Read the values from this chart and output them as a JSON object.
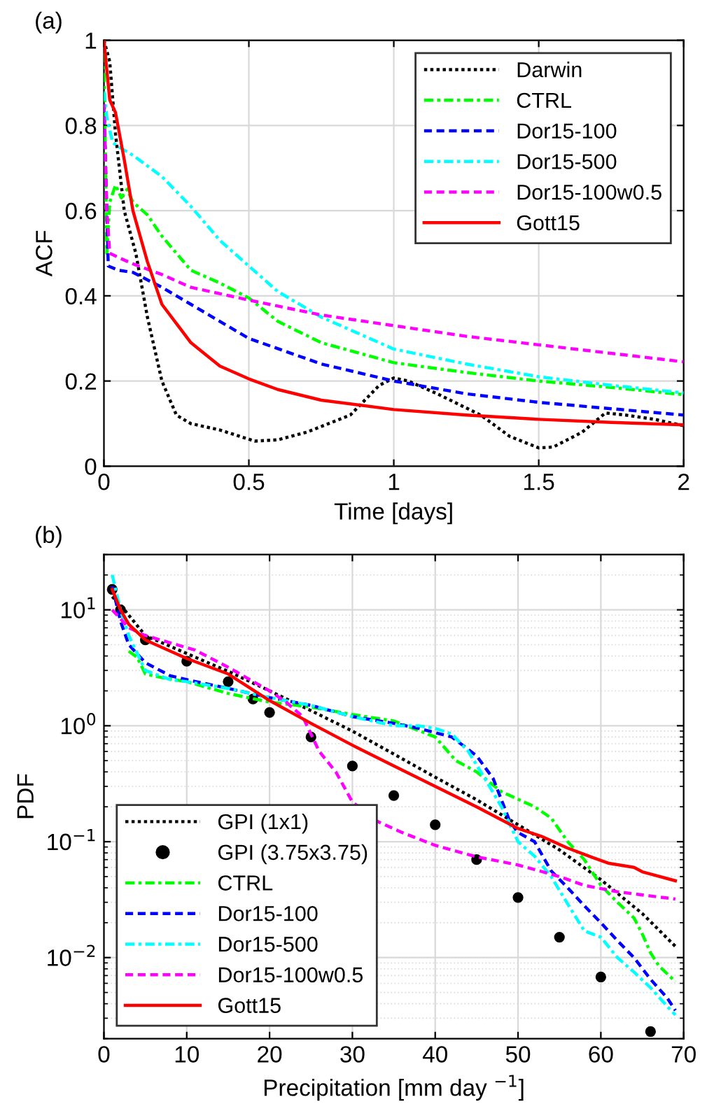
{
  "chart_data": [
    {
      "type": "line",
      "title": "(a)",
      "xlabel": "Time [days]",
      "ylabel": "ACF",
      "xlim": [
        0,
        2
      ],
      "ylim": [
        0,
        1
      ],
      "xticks": [
        0,
        0.5,
        1,
        1.5,
        2
      ],
      "yticks": [
        0,
        0.2,
        0.4,
        0.6,
        0.8,
        1
      ],
      "grid": true,
      "legend": "top right",
      "series": [
        {
          "name": "Darwin",
          "color": "#000000",
          "line_style": "dotted",
          "x": [
            0,
            0.02,
            0.04,
            0.07,
            0.11,
            0.15,
            0.2,
            0.25,
            0.3,
            0.4,
            0.52,
            0.6,
            0.7,
            0.85,
            0.95,
            1.0,
            1.05,
            1.15,
            1.3,
            1.4,
            1.5,
            1.55,
            1.65,
            1.73,
            1.8,
            1.9,
            2.0
          ],
          "values": [
            1,
            0.95,
            0.78,
            0.6,
            0.5,
            0.35,
            0.2,
            0.12,
            0.1,
            0.085,
            0.059,
            0.062,
            0.08,
            0.12,
            0.19,
            0.207,
            0.2,
            0.17,
            0.12,
            0.07,
            0.043,
            0.045,
            0.08,
            0.125,
            0.12,
            0.11,
            0.095
          ]
        },
        {
          "name": "CTRL",
          "color": "#00ff00",
          "line_style": "dashdot",
          "x": [
            0,
            0.01,
            0.02,
            0.04,
            0.06,
            0.08,
            0.1,
            0.15,
            0.2,
            0.3,
            0.4,
            0.5,
            0.6,
            0.75,
            1.0,
            1.25,
            1.5,
            1.75,
            2.0
          ],
          "values": [
            0.97,
            0.5,
            0.62,
            0.66,
            0.63,
            0.65,
            0.62,
            0.59,
            0.54,
            0.46,
            0.43,
            0.395,
            0.34,
            0.29,
            0.243,
            0.22,
            0.2,
            0.185,
            0.168
          ]
        },
        {
          "name": "Dor15-100",
          "color": "#0000ff",
          "line_style": "dashed",
          "x": [
            0,
            0.01,
            0.015,
            0.05,
            0.1,
            0.2,
            0.3,
            0.4,
            0.5,
            0.75,
            1.0,
            1.25,
            1.5,
            1.75,
            2.0
          ],
          "values": [
            0.85,
            0.6,
            0.47,
            0.46,
            0.455,
            0.42,
            0.38,
            0.34,
            0.3,
            0.24,
            0.2,
            0.17,
            0.15,
            0.135,
            0.12
          ]
        },
        {
          "name": "Dor15-500",
          "color": "#00ffff",
          "line_style": "dashdot",
          "x": [
            0,
            0.01,
            0.03,
            0.05,
            0.1,
            0.2,
            0.3,
            0.4,
            0.5,
            0.6,
            0.75,
            1.0,
            1.25,
            1.5,
            1.75,
            2.0
          ],
          "values": [
            0.88,
            0.82,
            0.76,
            0.75,
            0.73,
            0.68,
            0.61,
            0.53,
            0.47,
            0.41,
            0.35,
            0.275,
            0.24,
            0.21,
            0.19,
            0.172
          ]
        },
        {
          "name": "Dor15-100w0.5",
          "color": "#ff00ff",
          "line_style": "dashed",
          "x": [
            0,
            0.01,
            0.02,
            0.05,
            0.1,
            0.2,
            0.3,
            0.5,
            0.75,
            1.0,
            1.25,
            1.5,
            1.75,
            2.0
          ],
          "values": [
            0.85,
            0.6,
            0.5,
            0.49,
            0.475,
            0.45,
            0.42,
            0.39,
            0.355,
            0.33,
            0.305,
            0.285,
            0.265,
            0.245
          ]
        },
        {
          "name": "Gott15",
          "color": "#ff0000",
          "line_style": "solid",
          "x": [
            0,
            0.02,
            0.04,
            0.07,
            0.1,
            0.15,
            0.2,
            0.3,
            0.4,
            0.5,
            0.6,
            0.75,
            1.0,
            1.25,
            1.5,
            1.75,
            2.0
          ],
          "values": [
            1,
            0.86,
            0.83,
            0.72,
            0.6,
            0.48,
            0.38,
            0.29,
            0.235,
            0.205,
            0.18,
            0.155,
            0.133,
            0.12,
            0.11,
            0.103,
            0.097
          ]
        }
      ]
    },
    {
      "type": "line",
      "title": "(b)",
      "xlabel": "Precipitation [mm day $^{−1}$]",
      "ylabel": "PDF",
      "log": "y",
      "xlim": [
        0,
        70
      ],
      "ylim": [
        0.002,
        30
      ],
      "xticks": [
        0,
        10,
        20,
        30,
        40,
        50,
        60,
        70
      ],
      "yticks": [
        {
          "value": 0.01,
          "label": "10$^{−2}$"
        },
        {
          "value": 0.1,
          "label": "10$^{−1}$"
        },
        {
          "value": 1,
          "label": "10$^{0}$"
        },
        {
          "value": 10,
          "label": "10$^{1}$"
        }
      ],
      "grid": true,
      "legend": "bottom left",
      "series": [
        {
          "name": "GPI (1x1)",
          "color": "#000000",
          "line_style": "dotted",
          "x": [
            1,
            2,
            5,
            10,
            15,
            20,
            25,
            30,
            35,
            40,
            45,
            50,
            55,
            60,
            65,
            69
          ],
          "values": [
            13,
            11,
            6,
            4.2,
            2.95,
            2.0,
            1.35,
            0.9,
            0.57,
            0.36,
            0.23,
            0.14,
            0.085,
            0.047,
            0.024,
            0.0125
          ]
        },
        {
          "name": "GPI (3.75x3.75)",
          "type": "scatter",
          "marker": "circle",
          "color": "#000000",
          "x": [
            1,
            2,
            5,
            10,
            15,
            18,
            20,
            25,
            30,
            35,
            40,
            45,
            50,
            55,
            60,
            66
          ],
          "values": [
            15,
            10,
            5.5,
            3.6,
            2.4,
            1.7,
            1.3,
            0.8,
            0.45,
            0.25,
            0.14,
            0.07,
            0.033,
            0.015,
            0.0068,
            0.0023
          ]
        },
        {
          "name": "CTRL",
          "color": "#00ff00",
          "line_style": "dashdot",
          "x": [
            3,
            4,
            5,
            7,
            10,
            15,
            20,
            25,
            30,
            35,
            40,
            42.5,
            45,
            48,
            52,
            54,
            56,
            58,
            60,
            62,
            64,
            65,
            66,
            67,
            69
          ],
          "values": [
            4.4,
            3.9,
            2.8,
            2.6,
            2.4,
            1.9,
            1.6,
            1.45,
            1.25,
            1.1,
            0.8,
            0.5,
            0.4,
            0.27,
            0.2,
            0.16,
            0.1,
            0.07,
            0.042,
            0.03,
            0.022,
            0.016,
            0.011,
            0.0085,
            0.0062
          ]
        },
        {
          "name": "Dor15-100",
          "color": "#0000ff",
          "line_style": "dashed",
          "x": [
            1,
            2,
            3,
            5,
            8,
            10,
            15,
            20,
            25,
            30,
            35,
            38,
            42,
            45,
            47,
            49,
            50,
            52,
            54,
            56,
            58,
            60,
            62,
            64,
            66,
            68,
            69
          ],
          "values": [
            16,
            8,
            5,
            3.5,
            2.7,
            2.5,
            2.1,
            1.75,
            1.5,
            1.2,
            1.05,
            0.95,
            0.8,
            0.55,
            0.35,
            0.15,
            0.12,
            0.1,
            0.056,
            0.04,
            0.028,
            0.02,
            0.014,
            0.01,
            0.0065,
            0.0045,
            0.0035
          ]
        },
        {
          "name": "Dor15-500",
          "color": "#00ffff",
          "line_style": "dashdot",
          "x": [
            1,
            2,
            3,
            5,
            8,
            10,
            15,
            20,
            25,
            30,
            35,
            38,
            40,
            42,
            44,
            46,
            48,
            50,
            52,
            54,
            56,
            58,
            60,
            62,
            64,
            66,
            68,
            69
          ],
          "values": [
            20,
            10,
            6,
            3,
            2.5,
            2.4,
            2.1,
            1.75,
            1.5,
            1.2,
            1.0,
            1.0,
            0.95,
            0.85,
            0.6,
            0.35,
            0.2,
            0.1,
            0.075,
            0.05,
            0.029,
            0.017,
            0.015,
            0.01,
            0.0075,
            0.0055,
            0.0038,
            0.0032
          ]
        },
        {
          "name": "Dor15-100w0.5",
          "color": "#ff00ff",
          "line_style": "dashed",
          "x": [
            1,
            3,
            5,
            11,
            15,
            20,
            22,
            24,
            26,
            28,
            30,
            33,
            36,
            40,
            45,
            50,
            55,
            58,
            62,
            66,
            69
          ],
          "values": [
            10,
            7,
            6,
            4.5,
            3.2,
            2.0,
            1.6,
            1.2,
            0.6,
            0.4,
            0.22,
            0.15,
            0.12,
            0.093,
            0.074,
            0.063,
            0.05,
            0.042,
            0.037,
            0.034,
            0.032
          ]
        },
        {
          "name": "Gott15",
          "color": "#ff0000",
          "line_style": "solid",
          "x": [
            1,
            2,
            3,
            5,
            10,
            15,
            20,
            25,
            30,
            35,
            40,
            45,
            50,
            53,
            56,
            59,
            61,
            64,
            65,
            69
          ],
          "values": [
            15,
            10,
            7.5,
            5.5,
            3.8,
            2.8,
            1.65,
            1.05,
            0.68,
            0.45,
            0.3,
            0.2,
            0.13,
            0.11,
            0.088,
            0.073,
            0.065,
            0.06,
            0.055,
            0.046
          ]
        }
      ]
    }
  ]
}
